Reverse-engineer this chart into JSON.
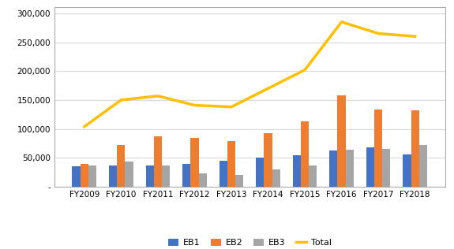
{
  "years": [
    "FY2009",
    "FY2010",
    "FY2011",
    "FY2012",
    "FY2013",
    "FY2014",
    "FY2015",
    "FY2016",
    "FY2017",
    "FY2018"
  ],
  "eb1": [
    36000,
    37000,
    37000,
    39000,
    45000,
    50000,
    55000,
    63000,
    68000,
    56000
  ],
  "eb2": [
    39000,
    72000,
    87000,
    85000,
    79000,
    93000,
    113000,
    158000,
    133000,
    132000
  ],
  "eb3": [
    37000,
    43000,
    37000,
    23000,
    20000,
    30000,
    37000,
    64000,
    65000,
    72000
  ],
  "total": [
    104000,
    150000,
    157000,
    141000,
    138000,
    170000,
    202000,
    285000,
    265000,
    260000
  ],
  "eb1_color": "#4472C4",
  "eb2_color": "#ED7D31",
  "eb3_color": "#A5A5A5",
  "total_color": "#FFC000",
  "ylim": [
    0,
    310000
  ],
  "yticks": [
    0,
    50000,
    100000,
    150000,
    200000,
    250000,
    300000
  ],
  "ytick_labels": [
    "-",
    "50,000",
    "100,000",
    "150,000",
    "200,000",
    "250,000",
    "300,000"
  ],
  "bar_width": 0.22,
  "background_color": "#FFFFFF",
  "grid_color": "#D9D9D9",
  "border_color": "#AAAAAA"
}
